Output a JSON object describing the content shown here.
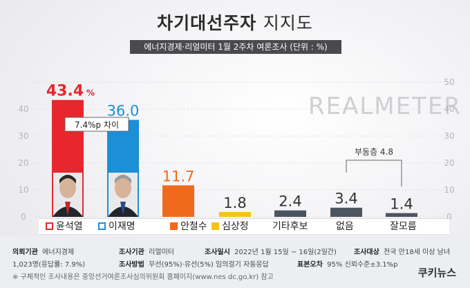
{
  "header": {
    "title_bold": "차기대선주자",
    "title_light": "지지도",
    "subtitle": "에너지경제·리얼미터 1월 2주차 여론조사 (단위 : %)"
  },
  "watermark": "REALMETER",
  "chart_data": {
    "type": "bar",
    "categories": [
      "윤석열",
      "이재명",
      "안철수",
      "심상정",
      "기타후보",
      "없음",
      "잘모름"
    ],
    "values": [
      43.4,
      36.0,
      11.7,
      1.8,
      2.4,
      3.4,
      1.4
    ],
    "value_labels": [
      "43.4%",
      "36.0",
      "11.7",
      "1.8",
      "2.4",
      "3.4",
      "1.4"
    ],
    "colors": [
      "#e8262d",
      "#1c8fd6",
      "#ef6a1c",
      "#f6c21a",
      "#4a5560",
      "#4a5560",
      "#4a5560"
    ],
    "label_colors": [
      "#e8262d",
      "#1c8fd6",
      "#ef6a1c",
      "#333333",
      "#333333",
      "#333333",
      "#333333"
    ],
    "yticks": [
      0,
      10,
      20,
      30,
      40
    ],
    "right_ticks": [
      0,
      10,
      20,
      30,
      40,
      50
    ],
    "ylim": [
      0,
      50
    ],
    "annotations": {
      "gap_label": "7.4%p 차이",
      "undecided_label": "부동층 4.8"
    }
  },
  "legend": [
    {
      "label": "윤석열",
      "color": "#e8262d"
    },
    {
      "label": "이재명",
      "color": "#1c8fd6"
    },
    {
      "label": "안철수",
      "color": "#ef6a1c"
    },
    {
      "label": "심상정",
      "color": "#f6c21a"
    },
    {
      "label": "기타후보",
      "color": ""
    },
    {
      "label": "없음",
      "color": ""
    },
    {
      "label": "잘모름",
      "color": ""
    }
  ],
  "footer": {
    "org_label": "의뢰기관",
    "org_value": "에너지경제",
    "agency_label": "조사기관",
    "agency_value": "리얼미터",
    "date_label": "조사일시",
    "date_value": "2022년 1월 15일 ~ 16일(2일간)",
    "target_label": "조사대상",
    "target_value": "전국 만18세 이상 남녀",
    "sample_value": "1,023명(응답률: 7.9%)",
    "method_label": "조사방법",
    "method_value": "무선(95%)·유선(5%) 임의걸기 자동응답",
    "error_label": "표본오차",
    "error_value": "95% 신뢰수준±3.1%p",
    "note": "※ 구체적인 조사내용은 중앙선거여론조사심의위원회 홈페이지(www.nes dc.go.kr) 참고",
    "logo": "쿠키뉴스"
  }
}
